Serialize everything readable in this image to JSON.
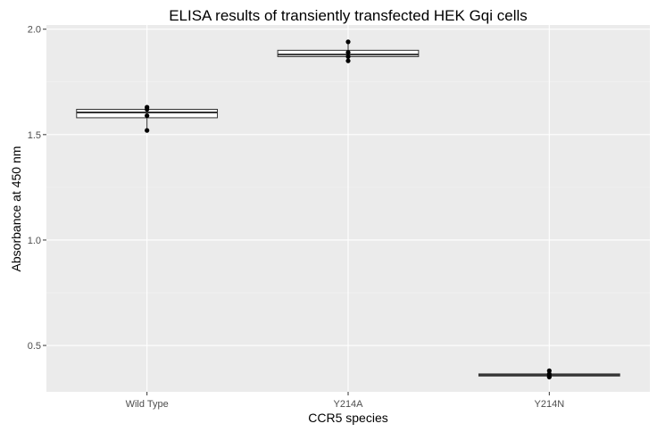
{
  "chart_data": {
    "type": "box",
    "title": "ELISA results of transiently transfected HEK Gqi cells",
    "xlabel": "CCR5 species",
    "ylabel": "Absorbance at 450 nm",
    "categories": [
      "Wild Type",
      "Y214A",
      "Y214N"
    ],
    "ylim": [
      0.28,
      2.02
    ],
    "yticks": [
      0.5,
      1.0,
      1.5,
      2.0
    ],
    "ytick_labels": [
      "0.5",
      "1.0",
      "1.5",
      "2.0"
    ],
    "grid": true,
    "boxes": [
      {
        "category": "Wild Type",
        "whisker_low": 1.52,
        "q1": 1.58,
        "median": 1.605,
        "q3": 1.62,
        "whisker_high": 1.63,
        "points": [
          1.52,
          1.59,
          1.62,
          1.63
        ]
      },
      {
        "category": "Y214A",
        "whisker_low": 1.85,
        "q1": 1.87,
        "median": 1.88,
        "q3": 1.9,
        "whisker_high": 1.94,
        "points": [
          1.85,
          1.87,
          1.89,
          1.94
        ]
      },
      {
        "category": "Y214N",
        "whisker_low": 0.35,
        "q1": 0.355,
        "median": 0.36,
        "q3": 0.365,
        "whisker_high": 0.38,
        "points": [
          0.35,
          0.355,
          0.365,
          0.38
        ]
      }
    ],
    "colors": {
      "panel": "#ebebeb",
      "grid_major": "#ffffff",
      "grid_minor": "#f5f5f5",
      "box_fill": "#ffffff",
      "box_line": "#333333",
      "point": "#000000"
    }
  }
}
